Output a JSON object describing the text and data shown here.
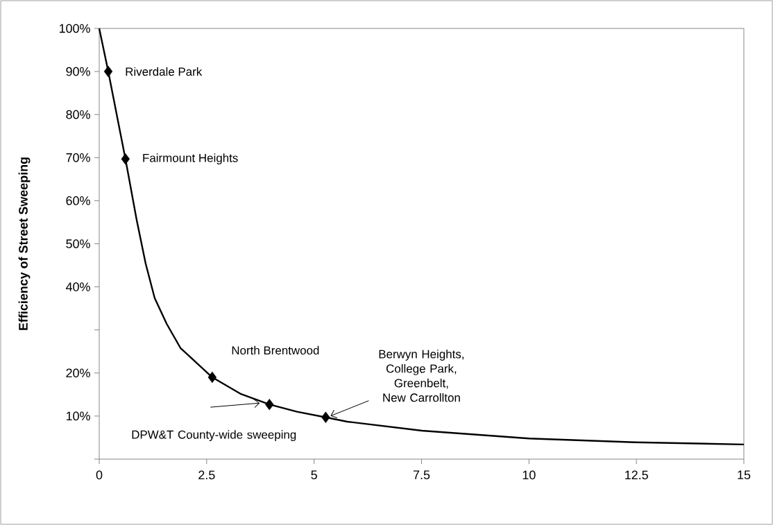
{
  "chart_data": {
    "type": "line",
    "ylabel": "Efficiency of Street Sweeping",
    "xlim": [
      0,
      15
    ],
    "ylim": [
      0,
      100
    ],
    "xticks": [
      0,
      2.5,
      5,
      7.5,
      10,
      12.5,
      15
    ],
    "yticks": [
      {
        "value": 0,
        "label": null
      },
      {
        "value": 10,
        "label": "10%"
      },
      {
        "value": 20,
        "label": "20%"
      },
      {
        "value": 30,
        "label": null
      },
      {
        "value": 40,
        "label": "40%"
      },
      {
        "value": 50,
        "label": "50%"
      },
      {
        "value": 60,
        "label": "60%"
      },
      {
        "value": 70,
        "label": "70%"
      },
      {
        "value": 80,
        "label": "80%"
      },
      {
        "value": 90,
        "label": "90%"
      },
      {
        "value": 100,
        "label": "100%"
      }
    ],
    "series": [
      {
        "color": "#000000",
        "marker": "none",
        "x": [
          0,
          0.21,
          0.61,
          0.87,
          1.08,
          1.29,
          1.57,
          1.89,
          2.63,
          3.3,
          3.96,
          4.6,
          5.27,
          5.77,
          7.51,
          10,
          12.47,
          15
        ],
        "values": [
          100,
          90,
          69.7,
          55.6,
          45.4,
          37.4,
          31.4,
          25.8,
          19,
          15.1,
          12.7,
          11,
          9.7,
          8.7,
          6.6,
          4.8,
          3.9,
          3.4
        ]
      },
      {
        "type": "scatter",
        "color": "#000000",
        "marker": "diamond",
        "x": [
          0.21,
          0.61,
          2.63,
          3.96,
          5.27
        ],
        "values": [
          90,
          69.7,
          19,
          12.7,
          9.7
        ]
      }
    ],
    "annotations": [
      {
        "text": "Riverdale Park",
        "x": 0.21,
        "y": 90
      },
      {
        "text": "Fairmount Heights",
        "x": 0.61,
        "y": 69.7
      },
      {
        "text": "North Brentwood",
        "x": 2.63,
        "y": 19
      },
      {
        "text": "DPW&T County-wide sweeping",
        "x": 3.96,
        "y": 12.7
      },
      {
        "text": "Berwyn Heights, College Park, Greenbelt, New Carrollton",
        "x": 5.27,
        "y": 9.7
      }
    ]
  }
}
